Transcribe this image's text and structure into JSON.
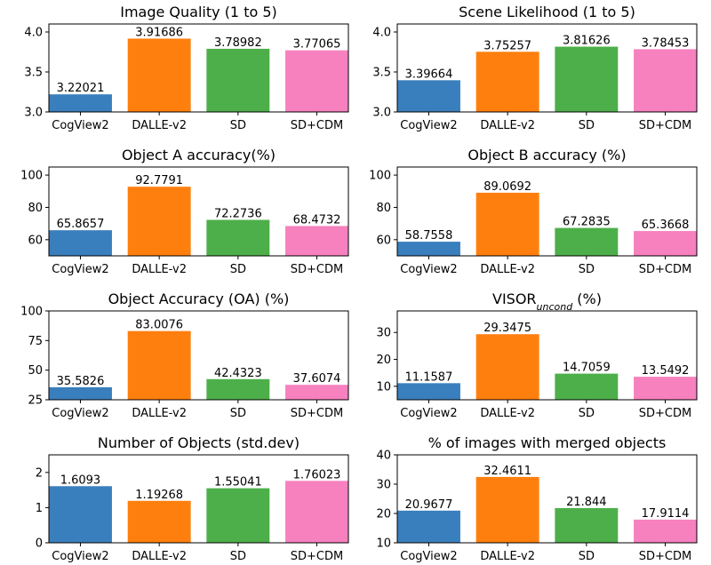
{
  "colors": [
    "#3a7fbd",
    "#ff7f0e",
    "#4daf4a",
    "#f781bf"
  ],
  "chart_data": [
    {
      "type": "bar",
      "title": "Image Quality (1 to 5)",
      "categories": [
        "CogView2",
        "DALLE-v2",
        "SD",
        "SD+CDM"
      ],
      "values": [
        3.22021,
        3.91686,
        3.78982,
        3.77065
      ],
      "labels": [
        "3.22021",
        "3.91686",
        "3.78982",
        "3.77065"
      ],
      "ylim": [
        3.0,
        4.1
      ],
      "yticks": [
        3.0,
        3.5,
        4.0
      ],
      "ytick_labels": [
        "3.0",
        "3.5",
        "4.0"
      ]
    },
    {
      "type": "bar",
      "title": "Scene Likelihood (1 to 5)",
      "categories": [
        "CogView2",
        "DALLE-v2",
        "SD",
        "SD+CDM"
      ],
      "values": [
        3.39664,
        3.75257,
        3.81626,
        3.78453
      ],
      "labels": [
        "3.39664",
        "3.75257",
        "3.81626",
        "3.78453"
      ],
      "ylim": [
        3.0,
        4.1
      ],
      "yticks": [
        3.0,
        3.5,
        4.0
      ],
      "ytick_labels": [
        "3.0",
        "3.5",
        "4.0"
      ]
    },
    {
      "type": "bar",
      "title": "Object A accuracy(%)",
      "categories": [
        "CogView2",
        "DALLE-v2",
        "SD",
        "SD+CDM"
      ],
      "values": [
        65.8657,
        92.7791,
        72.2736,
        68.4732
      ],
      "labels": [
        "65.8657",
        "92.7791",
        "72.2736",
        "68.4732"
      ],
      "ylim": [
        50,
        105
      ],
      "yticks": [
        60,
        80,
        100
      ],
      "ytick_labels": [
        "60",
        "80",
        "100"
      ]
    },
    {
      "type": "bar",
      "title": "Object B accuracy (%)",
      "categories": [
        "CogView2",
        "DALLE-v2",
        "SD",
        "SD+CDM"
      ],
      "values": [
        58.7558,
        89.0692,
        67.2835,
        65.3668
      ],
      "labels": [
        "58.7558",
        "89.0692",
        "67.2835",
        "65.3668"
      ],
      "ylim": [
        50,
        105
      ],
      "yticks": [
        60,
        80,
        100
      ],
      "ytick_labels": [
        "60",
        "80",
        "100"
      ]
    },
    {
      "type": "bar",
      "title": "Object Accuracy (OA) (%)",
      "categories": [
        "CogView2",
        "DALLE-v2",
        "SD",
        "SD+CDM"
      ],
      "values": [
        35.5826,
        83.0076,
        42.4323,
        37.6074
      ],
      "labels": [
        "35.5826",
        "83.0076",
        "42.4323",
        "37.6074"
      ],
      "ylim": [
        25,
        100
      ],
      "yticks": [
        25,
        50,
        75,
        100
      ],
      "ytick_labels": [
        "25",
        "50",
        "75",
        "100"
      ]
    },
    {
      "type": "bar",
      "title_main": "VISOR",
      "title_sub": "uncond",
      "title_suffix": " (%)",
      "categories": [
        "CogView2",
        "DALLE-v2",
        "SD",
        "SD+CDM"
      ],
      "values": [
        11.1587,
        29.3475,
        14.7059,
        13.5492
      ],
      "labels": [
        "11.1587",
        "29.3475",
        "14.7059",
        "13.5492"
      ],
      "ylim": [
        5,
        38
      ],
      "yticks": [
        10,
        20,
        30
      ],
      "ytick_labels": [
        "10",
        "20",
        "30"
      ]
    },
    {
      "type": "bar",
      "title": "Number of Objects (std.dev)",
      "categories": [
        "CogView2",
        "DALLE-v2",
        "SD",
        "SD+CDM"
      ],
      "values": [
        1.6093,
        1.19268,
        1.55041,
        1.76023
      ],
      "labels": [
        "1.6093",
        "1.19268",
        "1.55041",
        "1.76023"
      ],
      "ylim": [
        0,
        2.5
      ],
      "yticks": [
        0,
        1,
        2
      ],
      "ytick_labels": [
        "0",
        "1",
        "2"
      ]
    },
    {
      "type": "bar",
      "title": "% of images with merged objects",
      "categories": [
        "CogView2",
        "DALLE-v2",
        "SD",
        "SD+CDM"
      ],
      "values": [
        20.9677,
        32.4611,
        21.844,
        17.9114
      ],
      "labels": [
        "20.9677",
        "32.4611",
        "21.844",
        "17.9114"
      ],
      "ylim": [
        10,
        40
      ],
      "yticks": [
        10,
        20,
        30,
        40
      ],
      "ytick_labels": [
        "10",
        "20",
        "30",
        "40"
      ]
    }
  ]
}
